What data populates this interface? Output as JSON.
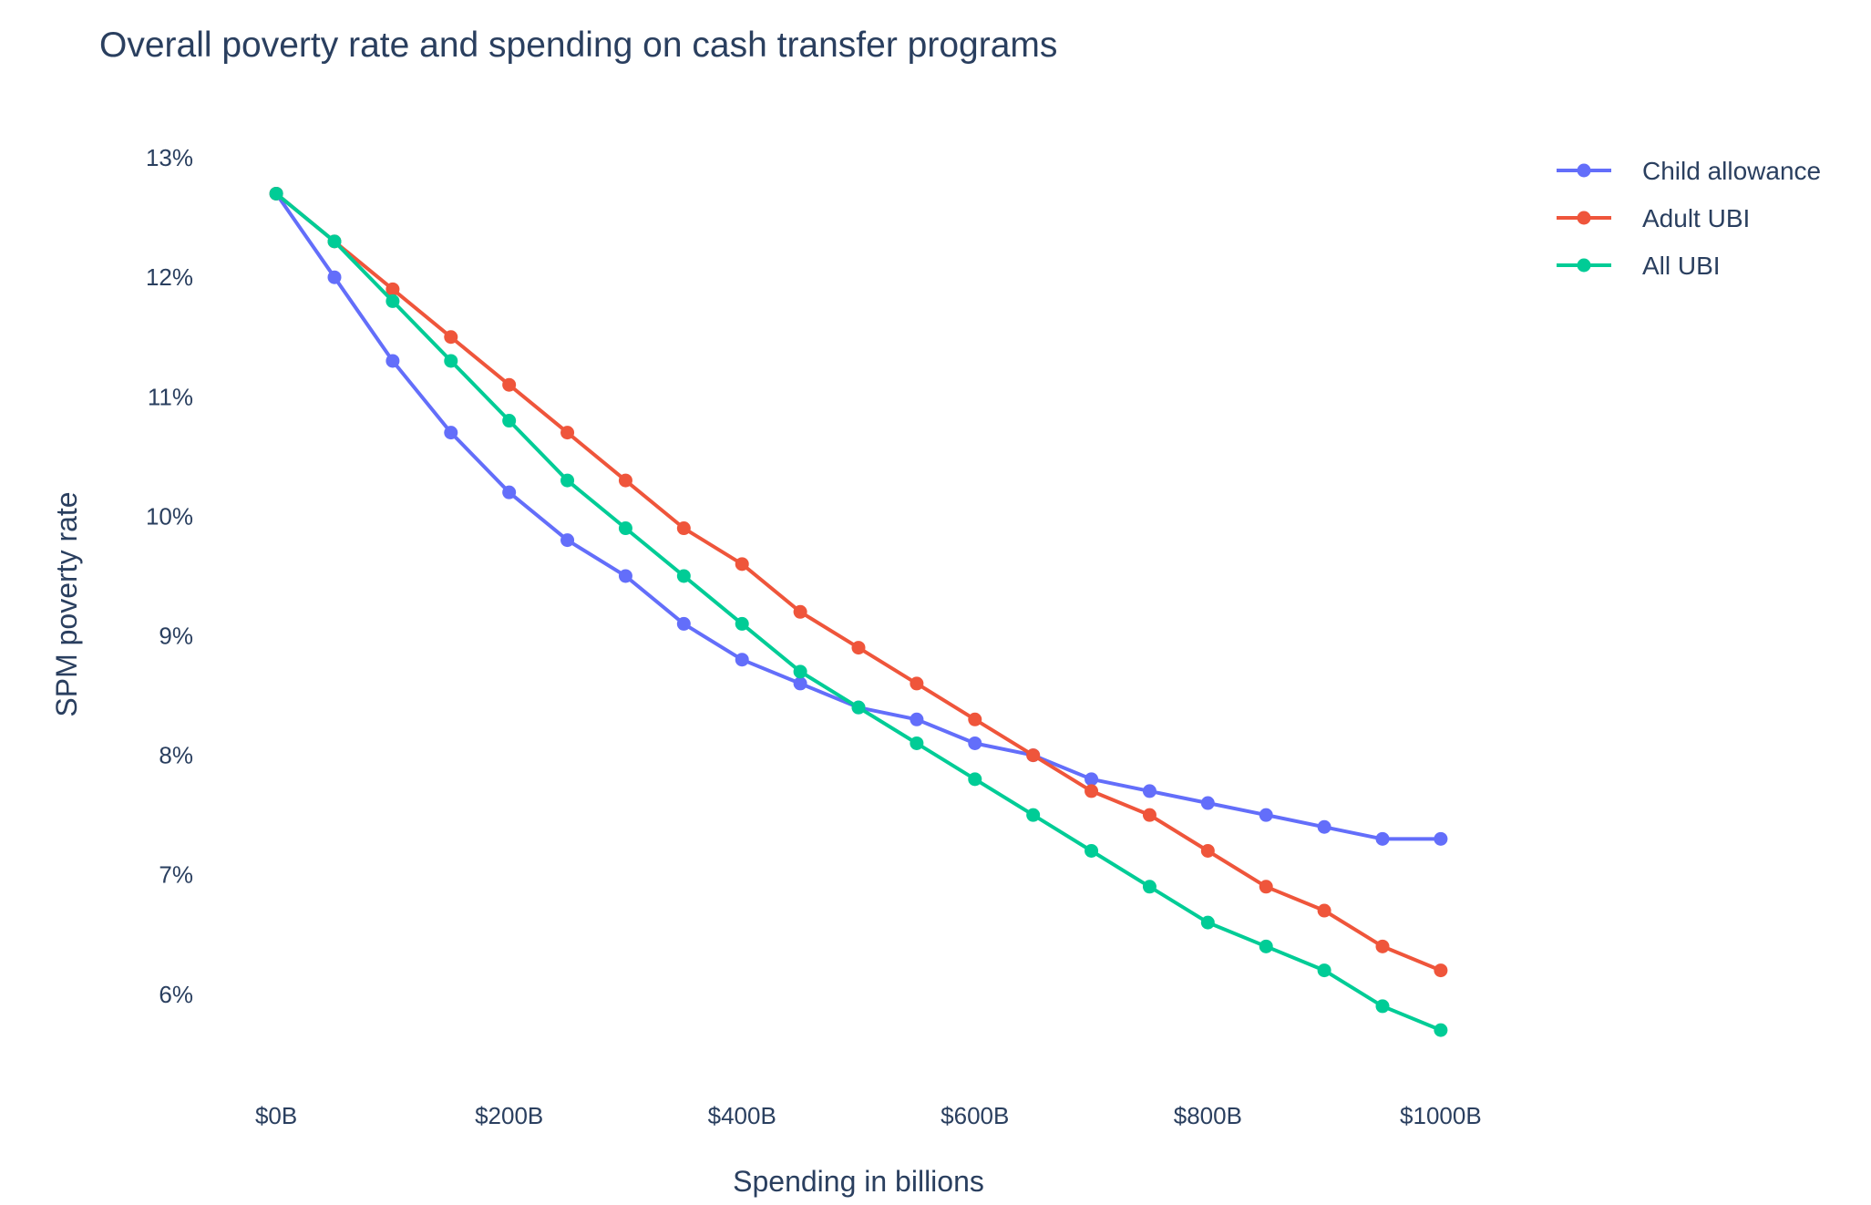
{
  "colors": {
    "Child allowance": "#636efa",
    "Adult UBI": "#ef553b",
    "All UBI": "#00cc96",
    "text": "#2a3f5f"
  },
  "chart_data": {
    "type": "line",
    "title": "Overall poverty rate and spending on cash transfer programs",
    "xlabel": "Spending in billions",
    "ylabel": "SPM poverty rate",
    "x": [
      0,
      50,
      100,
      150,
      200,
      250,
      300,
      350,
      400,
      450,
      500,
      550,
      600,
      650,
      700,
      750,
      800,
      850,
      900,
      950,
      1000
    ],
    "x_ticks": [
      0,
      200,
      400,
      600,
      800,
      1000
    ],
    "x_tick_labels": [
      "$0B",
      "$200B",
      "$400B",
      "$600B",
      "$800B",
      "$1000B"
    ],
    "y_ticks": [
      6,
      7,
      8,
      9,
      10,
      11,
      12,
      13
    ],
    "y_tick_labels": [
      "6%",
      "7%",
      "8%",
      "9%",
      "10%",
      "11%",
      "12%",
      "13%"
    ],
    "xlim": [
      -40,
      1040
    ],
    "ylim": [
      5.35,
      13.1
    ],
    "grid": false,
    "legend_position": "top-right",
    "series": [
      {
        "name": "Child allowance",
        "values": [
          12.7,
          12.0,
          11.3,
          10.7,
          10.2,
          9.8,
          9.5,
          9.1,
          8.8,
          8.6,
          8.4,
          8.3,
          8.1,
          8.0,
          7.8,
          7.7,
          7.6,
          7.5,
          7.4,
          7.3,
          7.3
        ]
      },
      {
        "name": "Adult UBI",
        "values": [
          12.7,
          12.3,
          11.9,
          11.5,
          11.1,
          10.7,
          10.3,
          9.9,
          9.6,
          9.2,
          8.9,
          8.6,
          8.3,
          8.0,
          7.7,
          7.5,
          7.2,
          6.9,
          6.7,
          6.4,
          6.2
        ]
      },
      {
        "name": "All UBI",
        "values": [
          12.7,
          12.3,
          11.8,
          11.3,
          10.8,
          10.3,
          9.9,
          9.5,
          9.1,
          8.7,
          8.4,
          8.1,
          7.8,
          7.5,
          7.2,
          6.9,
          6.6,
          6.4,
          6.2,
          5.9,
          5.7
        ]
      }
    ]
  }
}
